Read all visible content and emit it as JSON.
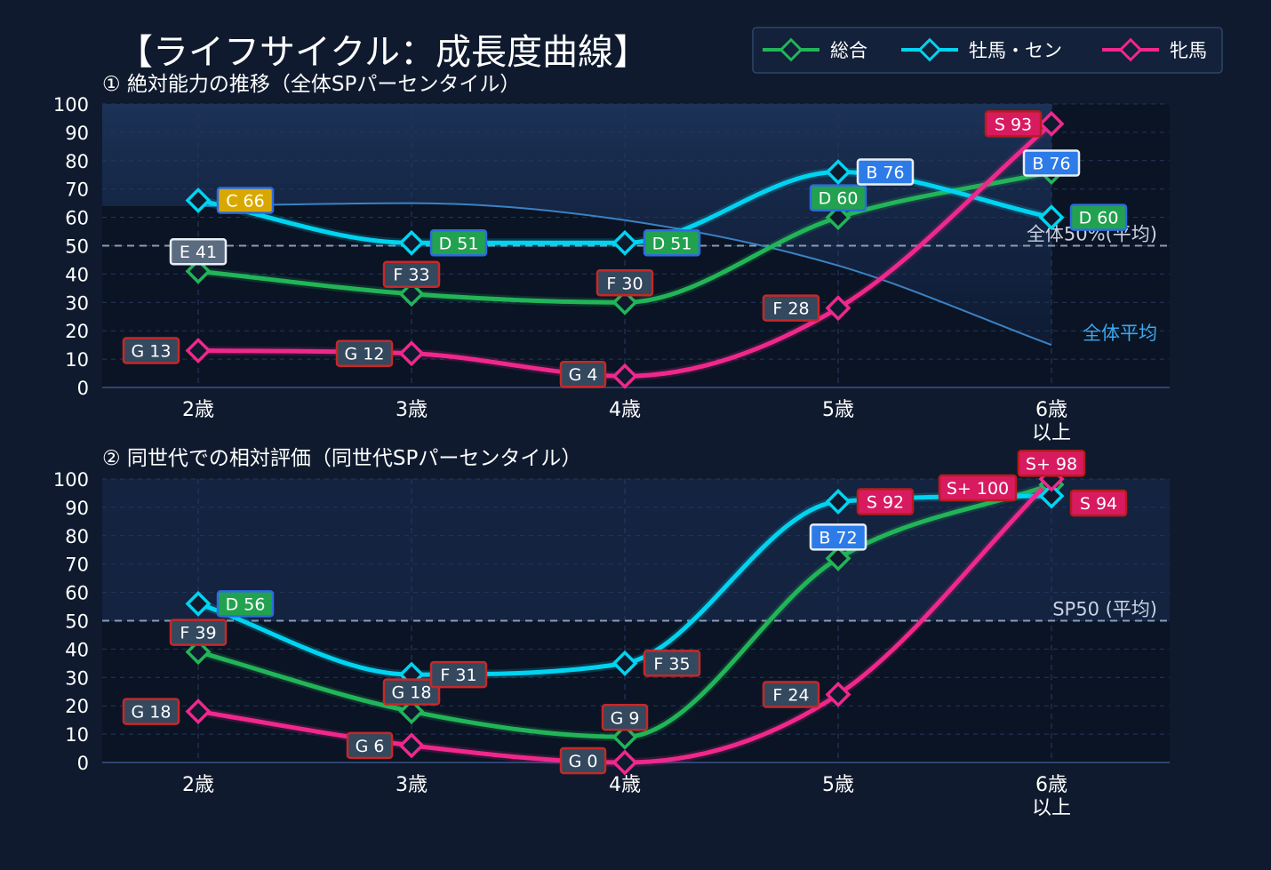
{
  "title": "【ライフサイクル：成長度曲線】",
  "legend": [
    {
      "name": "総合",
      "color": "#22b558"
    },
    {
      "name": "牡馬・セン",
      "color": "#00d4f0"
    },
    {
      "name": "牝馬",
      "color": "#f0288c"
    }
  ],
  "chart_data": [
    {
      "type": "line",
      "title": "① 絶対能力の推移（全体SPパーセンタイル）",
      "categories": [
        "2歳",
        "3歳",
        "4歳",
        "5歳",
        "6歳\n以上"
      ],
      "ylim": [
        0,
        100
      ],
      "yticks": [
        0,
        10,
        20,
        30,
        40,
        50,
        60,
        70,
        80,
        90,
        100
      ],
      "reference_line": {
        "value": 50,
        "label": "全体50%(平均)"
      },
      "average_curve": {
        "label": "全体平均",
        "values": [
          64,
          65,
          59,
          43,
          15
        ]
      },
      "series": [
        {
          "name": "総合",
          "color": "#22b558",
          "values": [
            41,
            33,
            30,
            60,
            76
          ],
          "labels": [
            "E 41",
            "F 33",
            "F 30",
            "D 60",
            "B 76"
          ]
        },
        {
          "name": "牡馬・セン",
          "color": "#00d4f0",
          "values": [
            66,
            51,
            51,
            76,
            60
          ],
          "labels": [
            "C 66",
            "D 51",
            "D 51",
            "B 76",
            "D 60"
          ]
        },
        {
          "name": "牝馬",
          "color": "#f0288c",
          "values": [
            13,
            12,
            4,
            28,
            93
          ],
          "labels": [
            "G 13",
            "G 12",
            "G 4",
            "F 28",
            "S 93"
          ]
        }
      ]
    },
    {
      "type": "line",
      "title": "② 同世代での相対評価（同世代SPパーセンタイル）",
      "categories": [
        "2歳",
        "3歳",
        "4歳",
        "5歳",
        "6歳\n以上"
      ],
      "ylim": [
        0,
        100
      ],
      "yticks": [
        0,
        10,
        20,
        30,
        40,
        50,
        60,
        70,
        80,
        90,
        100
      ],
      "reference_line": {
        "value": 50,
        "label": "SP50 (平均)"
      },
      "series": [
        {
          "name": "総合",
          "color": "#22b558",
          "values": [
            39,
            18,
            9,
            72,
            98
          ],
          "labels": [
            "F 39",
            "G 18",
            "G 9",
            "B 72",
            "S+ 98"
          ]
        },
        {
          "name": "牡馬・セン",
          "color": "#00d4f0",
          "values": [
            56,
            31,
            35,
            92,
            94
          ],
          "labels": [
            "D 56",
            "F 31",
            "F 35",
            "S 92",
            "S 94"
          ]
        },
        {
          "name": "牝馬",
          "color": "#f0288c",
          "values": [
            18,
            6,
            0,
            24,
            100
          ],
          "labels": [
            "G 18",
            "G 6",
            "G 0",
            "F 24",
            "S+ 100"
          ]
        }
      ]
    }
  ]
}
